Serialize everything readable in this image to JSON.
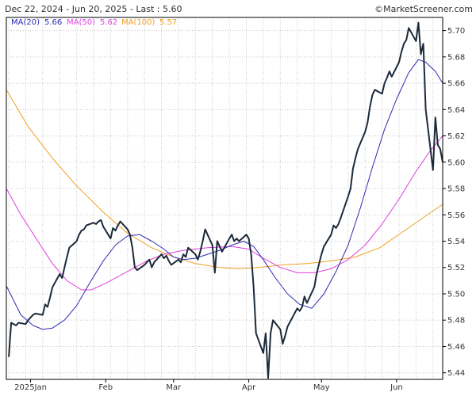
{
  "header": {
    "range_text": "Dec 22, 2024 - Jun 20, 2025 - Last : 5.60",
    "source_text": "©MarketScreener.com"
  },
  "colors": {
    "price": "#1c2a3a",
    "ma20": "#2b2bb3",
    "ma50": "#e040e0",
    "ma100": "#f0a020",
    "grid": "#c8c8c8",
    "axis": "#000000"
  },
  "chart_data": {
    "type": "line",
    "title": "",
    "xlabel": "",
    "ylabel": "",
    "x_start": "2024-12-22",
    "x_end": "2025-06-20",
    "ylim": [
      5.435,
      5.71
    ],
    "grid": true,
    "legend_placement": "top-left",
    "x_tick_labels": [
      {
        "date": "2025-01-01",
        "label": "2025Jan"
      },
      {
        "date": "2025-02-01",
        "label": "Feb"
      },
      {
        "date": "2025-03-01",
        "label": "Mar"
      },
      {
        "date": "2025-04-01",
        "label": "Apr"
      },
      {
        "date": "2025-05-01",
        "label": "May"
      },
      {
        "date": "2025-06-01",
        "label": "Jun"
      }
    ],
    "y_ticks": [
      "5.44",
      "5.46",
      "5.48",
      "5.50",
      "5.52",
      "5.54",
      "5.56",
      "5.58",
      "5.60",
      "5.62",
      "5.64",
      "5.66",
      "5.68",
      "5.70"
    ],
    "series": [
      {
        "name": "Price",
        "key": "price",
        "show_in_legend": false,
        "points": [
          [
            "2024-12-23",
            5.452
          ],
          [
            "2024-12-24",
            5.478
          ],
          [
            "2024-12-26",
            5.476
          ],
          [
            "2024-12-27",
            5.478
          ],
          [
            "2024-12-30",
            5.477
          ],
          [
            "2024-12-31",
            5.48
          ],
          [
            "2025-01-02",
            5.484
          ],
          [
            "2025-01-03",
            5.485
          ],
          [
            "2025-01-06",
            5.484
          ],
          [
            "2025-01-07",
            5.492
          ],
          [
            "2025-01-08",
            5.49
          ],
          [
            "2025-01-09",
            5.497
          ],
          [
            "2025-01-10",
            5.505
          ],
          [
            "2025-01-13",
            5.515
          ],
          [
            "2025-01-14",
            5.512
          ],
          [
            "2025-01-15",
            5.52
          ],
          [
            "2025-01-16",
            5.528
          ],
          [
            "2025-01-17",
            5.535
          ],
          [
            "2025-01-20",
            5.54
          ],
          [
            "2025-01-21",
            5.545
          ],
          [
            "2025-01-22",
            5.548
          ],
          [
            "2025-01-23",
            5.549
          ],
          [
            "2025-01-24",
            5.552
          ],
          [
            "2025-01-27",
            5.554
          ],
          [
            "2025-01-28",
            5.553
          ],
          [
            "2025-01-29",
            5.555
          ],
          [
            "2025-01-30",
            5.556
          ],
          [
            "2025-01-31",
            5.551
          ],
          [
            "2025-02-03",
            5.542
          ],
          [
            "2025-02-04",
            5.55
          ],
          [
            "2025-02-05",
            5.548
          ],
          [
            "2025-02-06",
            5.552
          ],
          [
            "2025-02-07",
            5.555
          ],
          [
            "2025-02-10",
            5.549
          ],
          [
            "2025-02-11",
            5.545
          ],
          [
            "2025-02-12",
            5.535
          ],
          [
            "2025-02-13",
            5.52
          ],
          [
            "2025-02-14",
            5.518
          ],
          [
            "2025-02-17",
            5.522
          ],
          [
            "2025-02-18",
            5.524
          ],
          [
            "2025-02-19",
            5.526
          ],
          [
            "2025-02-20",
            5.52
          ],
          [
            "2025-02-21",
            5.524
          ],
          [
            "2025-02-24",
            5.53
          ],
          [
            "2025-02-25",
            5.527
          ],
          [
            "2025-02-26",
            5.529
          ],
          [
            "2025-02-27",
            5.525
          ],
          [
            "2025-02-28",
            5.522
          ],
          [
            "2025-03-03",
            5.526
          ],
          [
            "2025-03-04",
            5.524
          ],
          [
            "2025-03-05",
            5.53
          ],
          [
            "2025-03-06",
            5.528
          ],
          [
            "2025-03-07",
            5.535
          ],
          [
            "2025-03-10",
            5.53
          ],
          [
            "2025-03-11",
            5.526
          ],
          [
            "2025-03-12",
            5.532
          ],
          [
            "2025-03-13",
            5.54
          ],
          [
            "2025-03-14",
            5.549
          ],
          [
            "2025-03-17",
            5.537
          ],
          [
            "2025-03-18",
            5.516
          ],
          [
            "2025-03-19",
            5.54
          ],
          [
            "2025-03-20",
            5.536
          ],
          [
            "2025-03-21",
            5.532
          ],
          [
            "2025-03-24",
            5.542
          ],
          [
            "2025-03-25",
            5.545
          ],
          [
            "2025-03-26",
            5.54
          ],
          [
            "2025-03-27",
            5.542
          ],
          [
            "2025-03-28",
            5.54
          ],
          [
            "2025-03-31",
            5.545
          ],
          [
            "2025-04-01",
            5.542
          ],
          [
            "2025-04-02",
            5.53
          ],
          [
            "2025-04-03",
            5.505
          ],
          [
            "2025-04-04",
            5.47
          ],
          [
            "2025-04-07",
            5.455
          ],
          [
            "2025-04-08",
            5.47
          ],
          [
            "2025-04-09",
            5.436
          ],
          [
            "2025-04-10",
            5.47
          ],
          [
            "2025-04-11",
            5.48
          ],
          [
            "2025-04-14",
            5.473
          ],
          [
            "2025-04-15",
            5.462
          ],
          [
            "2025-04-16",
            5.468
          ],
          [
            "2025-04-17",
            5.475
          ],
          [
            "2025-04-21",
            5.489
          ],
          [
            "2025-04-22",
            5.487
          ],
          [
            "2025-04-23",
            5.49
          ],
          [
            "2025-04-24",
            5.498
          ],
          [
            "2025-04-25",
            5.493
          ],
          [
            "2025-04-28",
            5.505
          ],
          [
            "2025-04-29",
            5.515
          ],
          [
            "2025-04-30",
            5.523
          ],
          [
            "2025-05-01",
            5.53
          ],
          [
            "2025-05-02",
            5.536
          ],
          [
            "2025-05-05",
            5.545
          ],
          [
            "2025-05-06",
            5.552
          ],
          [
            "2025-05-07",
            5.55
          ],
          [
            "2025-05-08",
            5.553
          ],
          [
            "2025-05-09",
            5.558
          ],
          [
            "2025-05-12",
            5.574
          ],
          [
            "2025-05-13",
            5.58
          ],
          [
            "2025-05-14",
            5.595
          ],
          [
            "2025-05-15",
            5.603
          ],
          [
            "2025-05-16",
            5.61
          ],
          [
            "2025-05-19",
            5.623
          ],
          [
            "2025-05-20",
            5.63
          ],
          [
            "2025-05-21",
            5.642
          ],
          [
            "2025-05-22",
            5.651
          ],
          [
            "2025-05-23",
            5.655
          ],
          [
            "2025-05-26",
            5.652
          ],
          [
            "2025-05-27",
            5.66
          ],
          [
            "2025-05-28",
            5.664
          ],
          [
            "2025-05-29",
            5.669
          ],
          [
            "2025-05-30",
            5.665
          ],
          [
            "2025-06-02",
            5.676
          ],
          [
            "2025-06-03",
            5.684
          ],
          [
            "2025-06-04",
            5.69
          ],
          [
            "2025-06-05",
            5.693
          ],
          [
            "2025-06-06",
            5.702
          ],
          [
            "2025-06-09",
            5.692
          ],
          [
            "2025-06-10",
            5.706
          ],
          [
            "2025-06-11",
            5.682
          ],
          [
            "2025-06-12",
            5.69
          ],
          [
            "2025-06-13",
            5.64
          ],
          [
            "2025-06-16",
            5.594
          ],
          [
            "2025-06-17",
            5.634
          ],
          [
            "2025-06-18",
            5.613
          ],
          [
            "2025-06-19",
            5.61
          ],
          [
            "2025-06-20",
            5.6
          ]
        ]
      },
      {
        "name": "MA(20)",
        "key": "ma20",
        "last_label": "5.66",
        "points": [
          [
            "2024-12-22",
            5.506
          ],
          [
            "2024-12-28",
            5.484
          ],
          [
            "2025-01-02",
            5.476
          ],
          [
            "2025-01-06",
            5.473
          ],
          [
            "2025-01-10",
            5.474
          ],
          [
            "2025-01-15",
            5.48
          ],
          [
            "2025-01-20",
            5.491
          ],
          [
            "2025-01-25",
            5.507
          ],
          [
            "2025-01-31",
            5.525
          ],
          [
            "2025-02-05",
            5.537
          ],
          [
            "2025-02-10",
            5.544
          ],
          [
            "2025-02-15",
            5.545
          ],
          [
            "2025-02-20",
            5.54
          ],
          [
            "2025-02-25",
            5.534
          ],
          [
            "2025-03-01",
            5.528
          ],
          [
            "2025-03-05",
            5.526
          ],
          [
            "2025-03-10",
            5.527
          ],
          [
            "2025-03-15",
            5.53
          ],
          [
            "2025-03-20",
            5.533
          ],
          [
            "2025-03-25",
            5.537
          ],
          [
            "2025-03-30",
            5.54
          ],
          [
            "2025-04-03",
            5.536
          ],
          [
            "2025-04-07",
            5.526
          ],
          [
            "2025-04-12",
            5.512
          ],
          [
            "2025-04-17",
            5.5
          ],
          [
            "2025-04-22",
            5.492
          ],
          [
            "2025-04-27",
            5.489
          ],
          [
            "2025-05-02",
            5.5
          ],
          [
            "2025-05-07",
            5.517
          ],
          [
            "2025-05-12",
            5.537
          ],
          [
            "2025-05-17",
            5.565
          ],
          [
            "2025-05-22",
            5.596
          ],
          [
            "2025-05-27",
            5.625
          ],
          [
            "2025-06-01",
            5.648
          ],
          [
            "2025-06-06",
            5.668
          ],
          [
            "2025-06-10",
            5.678
          ],
          [
            "2025-06-13",
            5.676
          ],
          [
            "2025-06-17",
            5.669
          ],
          [
            "2025-06-20",
            5.66
          ]
        ]
      },
      {
        "name": "MA(50)",
        "key": "ma50",
        "last_label": "5.62",
        "points": [
          [
            "2024-12-22",
            5.58
          ],
          [
            "2024-12-28",
            5.56
          ],
          [
            "2025-01-04",
            5.54
          ],
          [
            "2025-01-10",
            5.523
          ],
          [
            "2025-01-16",
            5.51
          ],
          [
            "2025-01-22",
            5.503
          ],
          [
            "2025-01-26",
            5.503
          ],
          [
            "2025-02-01",
            5.508
          ],
          [
            "2025-02-07",
            5.514
          ],
          [
            "2025-02-12",
            5.519
          ],
          [
            "2025-02-18",
            5.525
          ],
          [
            "2025-02-25",
            5.53
          ],
          [
            "2025-03-05",
            5.533
          ],
          [
            "2025-03-15",
            5.535
          ],
          [
            "2025-03-25",
            5.536
          ],
          [
            "2025-04-01",
            5.534
          ],
          [
            "2025-04-07",
            5.527
          ],
          [
            "2025-04-14",
            5.52
          ],
          [
            "2025-04-21",
            5.516
          ],
          [
            "2025-04-28",
            5.516
          ],
          [
            "2025-05-05",
            5.519
          ],
          [
            "2025-05-12",
            5.526
          ],
          [
            "2025-05-19",
            5.537
          ],
          [
            "2025-05-26",
            5.553
          ],
          [
            "2025-06-02",
            5.572
          ],
          [
            "2025-06-09",
            5.593
          ],
          [
            "2025-06-15",
            5.609
          ],
          [
            "2025-06-20",
            5.62
          ]
        ]
      },
      {
        "name": "MA(100)",
        "key": "ma100",
        "last_label": "5.57",
        "points": [
          [
            "2024-12-22",
            5.655
          ],
          [
            "2024-12-31",
            5.627
          ],
          [
            "2025-01-10",
            5.603
          ],
          [
            "2025-01-20",
            5.582
          ],
          [
            "2025-01-31",
            5.562
          ],
          [
            "2025-02-10",
            5.546
          ],
          [
            "2025-02-20",
            5.535
          ],
          [
            "2025-03-01",
            5.528
          ],
          [
            "2025-03-10",
            5.523
          ],
          [
            "2025-03-20",
            5.52
          ],
          [
            "2025-03-28",
            5.519
          ],
          [
            "2025-04-05",
            5.52
          ],
          [
            "2025-04-15",
            5.522
          ],
          [
            "2025-04-25",
            5.523
          ],
          [
            "2025-05-05",
            5.525
          ],
          [
            "2025-05-15",
            5.528
          ],
          [
            "2025-05-25",
            5.535
          ],
          [
            "2025-06-05",
            5.549
          ],
          [
            "2025-06-12",
            5.558
          ],
          [
            "2025-06-20",
            5.568
          ]
        ]
      }
    ]
  }
}
